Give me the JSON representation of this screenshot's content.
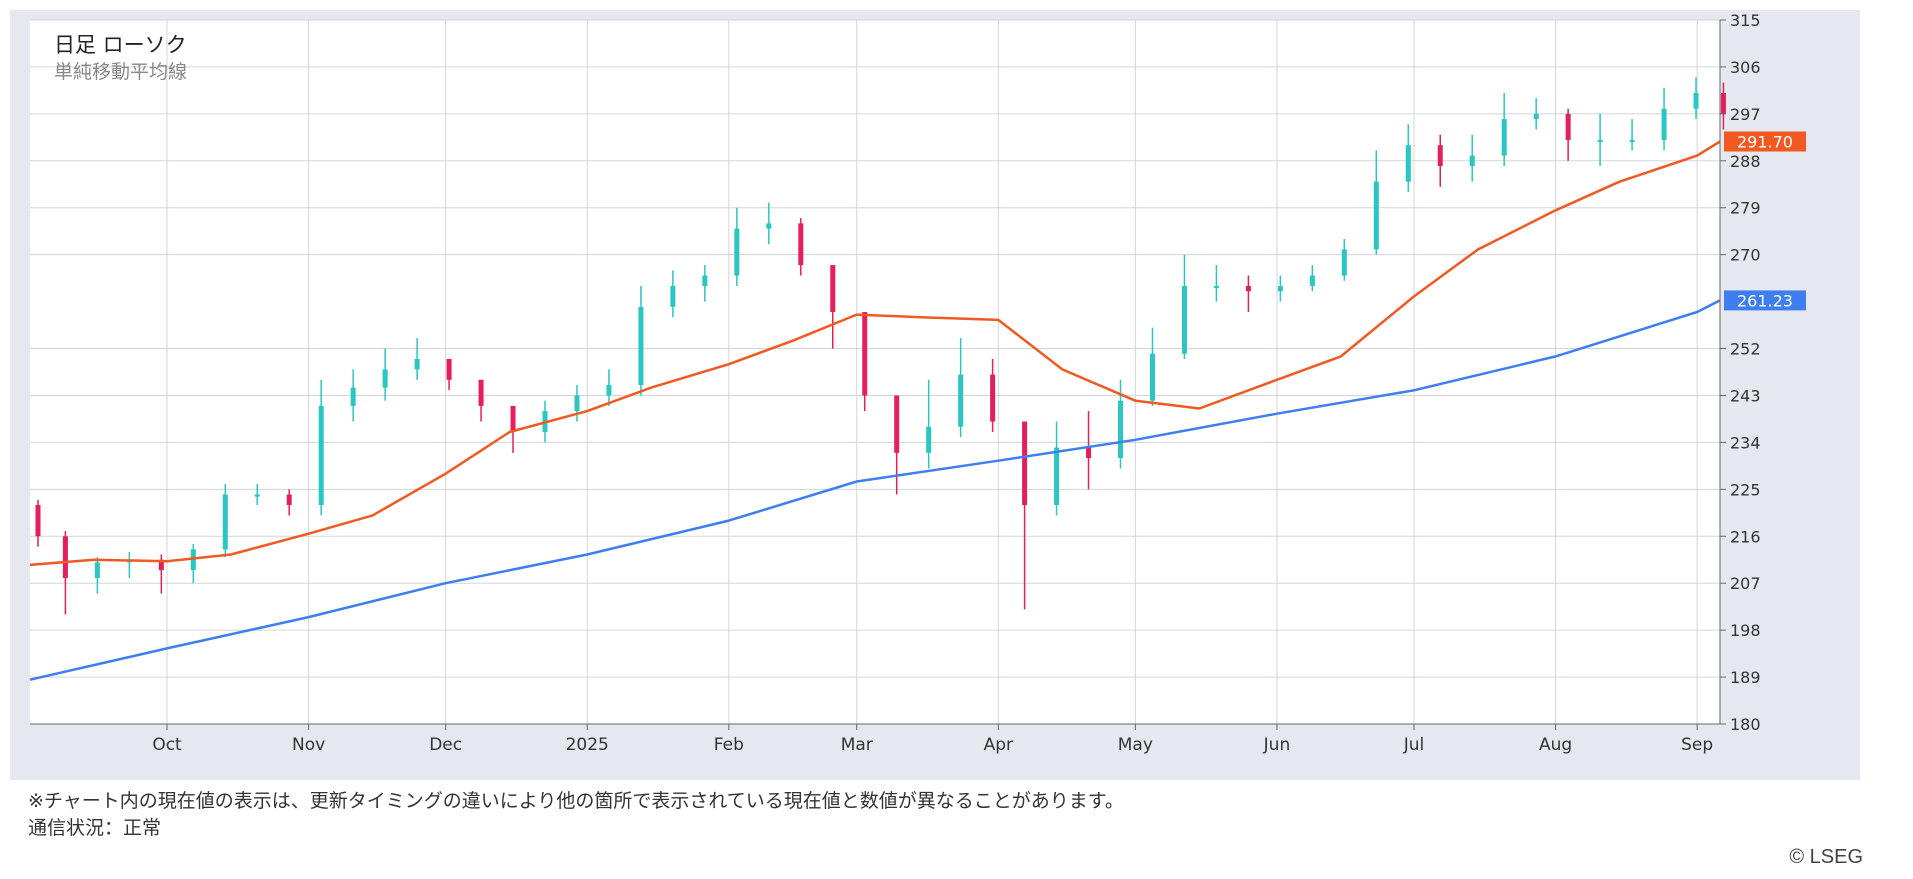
{
  "chart_data": {
    "type": "line",
    "title": "日足 ローソク",
    "subtitle": "単純移動平均線",
    "y_ticks": [
      315,
      306,
      297,
      288,
      279,
      270,
      252,
      243,
      234,
      225,
      216,
      207,
      198,
      189,
      180
    ],
    "ylim": [
      180,
      315
    ],
    "x_labels": [
      "Oct",
      "Nov",
      "Dec",
      "2025",
      "Feb",
      "Mar",
      "Apr",
      "May",
      "Jun",
      "Jul",
      "Aug",
      "Sep"
    ],
    "x_range": [
      "2024-09-01",
      "2025-09-06"
    ],
    "grid": true,
    "series": [
      {
        "label": "291.70",
        "color": "#f05a22",
        "current_value": 291.7,
        "x": [
          "2024-09-01",
          "2024-09-15",
          "2024-10-01",
          "2024-10-15",
          "2024-11-01",
          "2024-11-15",
          "2024-12-01",
          "2024-12-15",
          "2025-01-01",
          "2025-01-15",
          "2025-02-01",
          "2025-02-15",
          "2025-03-01",
          "2025-03-15",
          "2025-04-01",
          "2025-04-15",
          "2025-05-01",
          "2025-05-15",
          "2025-06-01",
          "2025-06-15",
          "2025-07-01",
          "2025-07-15",
          "2025-08-01",
          "2025-08-15",
          "2025-09-01",
          "2025-09-06"
        ],
        "y": [
          210.5,
          211.5,
          211.2,
          212.5,
          216.5,
          220.0,
          228.0,
          236.0,
          240.0,
          244.5,
          249.0,
          253.5,
          258.5,
          258.0,
          257.5,
          248.0,
          242.0,
          240.5,
          246.0,
          250.5,
          262.0,
          271.0,
          278.5,
          284.0,
          289.0,
          291.7
        ]
      },
      {
        "label": "261.23",
        "color": "#3f7ef0",
        "current_value": 261.23,
        "x": [
          "2024-09-01",
          "2024-10-01",
          "2024-11-01",
          "2024-12-01",
          "2025-01-01",
          "2025-02-01",
          "2025-03-01",
          "2025-04-01",
          "2025-05-01",
          "2025-06-01",
          "2025-07-01",
          "2025-08-01",
          "2025-09-01",
          "2025-09-06"
        ],
        "y": [
          188.5,
          194.5,
          200.5,
          207.0,
          212.5,
          219.0,
          226.5,
          230.5,
          234.5,
          239.5,
          244.0,
          250.5,
          259.0,
          261.23
        ]
      }
    ],
    "candles_note": "daily candlestick bars, teal = up, crimson = down",
    "candles": {
      "up_color": "#2ac6c2",
      "down_color": "#e61e59",
      "x": [
        "2024-09-01",
        "2024-09-07",
        "2024-09-14",
        "2024-09-21",
        "2024-09-28",
        "2024-10-05",
        "2024-10-12",
        "2024-10-19",
        "2024-10-26",
        "2024-11-02",
        "2024-11-09",
        "2024-11-16",
        "2024-11-23",
        "2024-11-30",
        "2024-12-07",
        "2024-12-14",
        "2024-12-21",
        "2024-12-28",
        "2025-01-04",
        "2025-01-11",
        "2025-01-18",
        "2025-01-25",
        "2025-02-01",
        "2025-02-08",
        "2025-02-15",
        "2025-02-22",
        "2025-03-01",
        "2025-03-08",
        "2025-03-15",
        "2025-03-22",
        "2025-03-29",
        "2025-04-05",
        "2025-04-12",
        "2025-04-19",
        "2025-04-26",
        "2025-05-03",
        "2025-05-10",
        "2025-05-17",
        "2025-05-24",
        "2025-05-31",
        "2025-06-07",
        "2025-06-14",
        "2025-06-21",
        "2025-06-28",
        "2025-07-05",
        "2025-07-12",
        "2025-07-19",
        "2025-07-26",
        "2025-08-02",
        "2025-08-09",
        "2025-08-16",
        "2025-08-23",
        "2025-08-30",
        "2025-09-05"
      ],
      "open": [
        222.0,
        216.0,
        208.0,
        211.0,
        211.5,
        209.5,
        213.5,
        224.0,
        224.0,
        222.0,
        241.0,
        244.5,
        248.0,
        250.0,
        246.0,
        241.0,
        236.0,
        240.0,
        243.0,
        245.0,
        260.0,
        264.0,
        266.0,
        275.0,
        276.0,
        268.0,
        259.0,
        243.0,
        232.0,
        237.0,
        247.0,
        238.0,
        222.0,
        233.0,
        231.0,
        242.0,
        251.0,
        264.0,
        264.0,
        263.0,
        264.0,
        266.0,
        271.0,
        284.0,
        291.0,
        287.0,
        289.0,
        296.0,
        297.0,
        292.0,
        292.0,
        292.0,
        298.0,
        301.0
      ],
      "close": [
        216.0,
        208.0,
        211.0,
        211.5,
        209.5,
        213.5,
        224.0,
        224.0,
        222.0,
        241.0,
        244.5,
        248.0,
        250.0,
        246.0,
        241.0,
        236.0,
        240.0,
        243.0,
        245.0,
        260.0,
        264.0,
        266.0,
        275.0,
        276.0,
        268.0,
        259.0,
        243.0,
        232.0,
        237.0,
        247.0,
        238.0,
        222.0,
        233.0,
        231.0,
        242.0,
        251.0,
        264.0,
        264.0,
        263.0,
        264.0,
        266.0,
        271.0,
        284.0,
        291.0,
        287.0,
        289.0,
        296.0,
        297.0,
        292.0,
        292.0,
        292.0,
        298.0,
        301.0,
        297.0
      ],
      "high": [
        223.0,
        217.0,
        212.0,
        213.0,
        212.5,
        214.5,
        226.0,
        226.0,
        225.0,
        246.0,
        248.0,
        252.0,
        254.0,
        249.0,
        244.0,
        240.0,
        242.0,
        245.0,
        248.0,
        264.0,
        267.0,
        268.0,
        279.0,
        280.0,
        277.0,
        262.0,
        256.0,
        240.0,
        246.0,
        254.0,
        250.0,
        237.0,
        238.0,
        240.0,
        246.0,
        256.0,
        270.0,
        268.0,
        266.0,
        266.0,
        268.0,
        273.0,
        290.0,
        295.0,
        293.0,
        293.0,
        301.0,
        300.0,
        298.0,
        297.0,
        296.0,
        302.0,
        304.0,
        303.0
      ],
      "low": [
        214.0,
        201.0,
        205.0,
        208.0,
        205.0,
        207.0,
        212.0,
        222.0,
        220.0,
        220.0,
        238.0,
        242.0,
        246.0,
        244.0,
        238.0,
        232.0,
        234.0,
        238.0,
        241.0,
        243.0,
        258.0,
        261.0,
        264.0,
        272.0,
        266.0,
        252.0,
        240.0,
        224.0,
        229.0,
        235.0,
        236.0,
        202.0,
        220.0,
        225.0,
        229.0,
        241.0,
        250.0,
        261.0,
        259.0,
        261.0,
        263.0,
        265.0,
        270.0,
        282.0,
        283.0,
        284.0,
        287.0,
        294.0,
        288.0,
        287.0,
        290.0,
        290.0,
        296.0,
        294.0
      ]
    }
  },
  "footer": {
    "note": "※チャート内の現在値の表示は、更新タイミングの違いにより他の箇所で表示されている現在値と数値が異なることがあります。",
    "status": "通信状況：正常",
    "copyright": "© LSEG"
  }
}
